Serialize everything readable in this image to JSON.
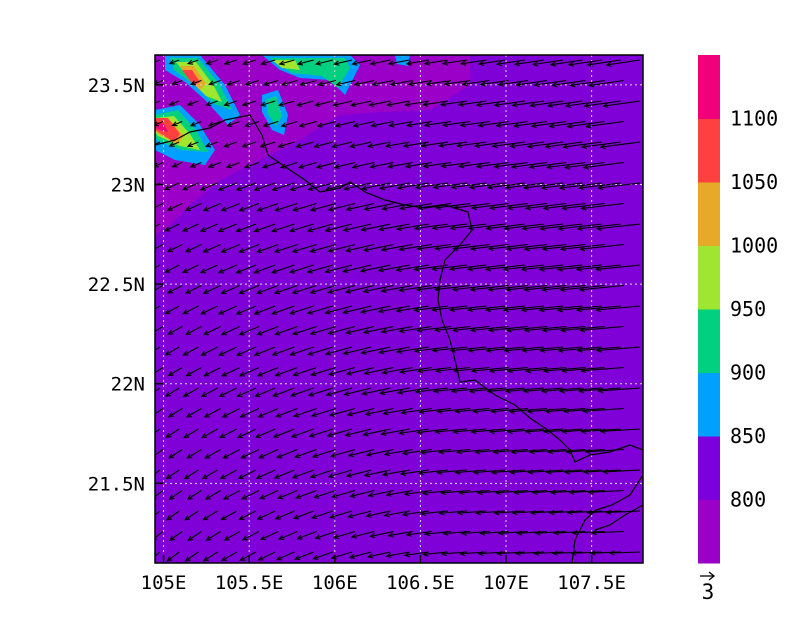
{
  "map": {
    "x_ticks": [
      {
        "value": 105.0,
        "label": "105E"
      },
      {
        "value": 105.5,
        "label": "105.5E"
      },
      {
        "value": 106.0,
        "label": "106E"
      },
      {
        "value": 106.5,
        "label": "106.5E"
      },
      {
        "value": 107.0,
        "label": "107E"
      },
      {
        "value": 107.5,
        "label": "107.5E"
      }
    ],
    "y_ticks": [
      {
        "value": 23.5,
        "label": "23.5N"
      },
      {
        "value": 23.0,
        "label": "23N"
      },
      {
        "value": 22.5,
        "label": "22.5N"
      },
      {
        "value": 22.0,
        "label": "22N"
      },
      {
        "value": 21.5,
        "label": "21.5N"
      }
    ],
    "lon_range": [
      104.95,
      107.8
    ],
    "lat_range": [
      21.1,
      23.65
    ],
    "grid": "dotted",
    "background_level_color": "#8000d8",
    "colorbar": {
      "position": "right",
      "boundaries": [
        800,
        850,
        900,
        950,
        1000,
        1050,
        1100
      ],
      "labels": [
        "800",
        "850",
        "900",
        "950",
        "1000",
        "1050",
        "1100"
      ],
      "colors": [
        "#9b00c8",
        "#7c00de",
        "#00a0ff",
        "#00d080",
        "#a0e630",
        "#e6aa28",
        "#ff4040",
        "#f0007a"
      ]
    },
    "vector_reference": {
      "value": 3,
      "label": "3"
    }
  }
}
